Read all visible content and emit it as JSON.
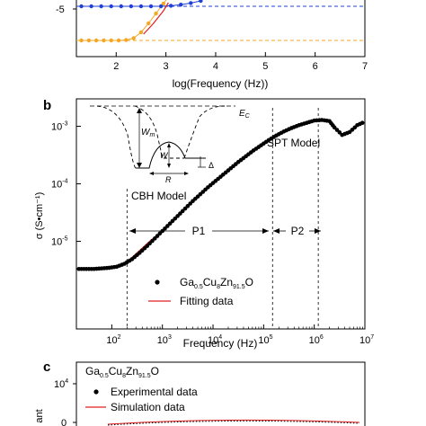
{
  "panel_a": {
    "xlabel": "log(Frequency (Hz))",
    "ytick_label": "-5"
  },
  "panel_b": {
    "label": "b",
    "xlabel": "Frequency (Hz)",
    "ylabel": "σ (S•cm⁻¹)",
    "cbh_label": "CBH Model",
    "spt_label": "SPT Model",
    "region_p1": "P1",
    "region_p2": "P2",
    "inset": {
      "ec": "E",
      "ec_sub": "C",
      "wm": "W",
      "wm_sub": "m",
      "w": "W",
      "r": "R",
      "delta": "Δ"
    },
    "legend": {
      "sample_main": "Ga",
      "sample_sub1": "0.5",
      "sample_cu": "Cu",
      "sample_sub2": "8",
      "sample_zn": "Zn",
      "sample_sub3": "91.5",
      "sample_o": "O",
      "fit": "Fitting data"
    }
  },
  "panel_c": {
    "label": "c",
    "sample_main": "Ga",
    "sample_sub1": "0.5",
    "sample_cu": "Cu",
    "sample_sub2": "8",
    "sample_zn": "Zn",
    "sample_sub3": "91.5",
    "sample_o": "O",
    "legend_exp": "Experimental data",
    "legend_sim": "Simulation data",
    "ytick_base": "10",
    "ytick_exp": "4",
    "ytick_zero": "0",
    "ylabel_partial": "ant"
  },
  "chart_data": [
    {
      "type": "scatter",
      "panel": "a",
      "xlabel": "log(Frequency (Hz))",
      "xlim": [
        1.2,
        7
      ],
      "x_ticks": [
        "2",
        "3",
        "4",
        "5",
        "6",
        "7"
      ],
      "y_ticks": [
        "-5"
      ],
      "hlines": [
        {
          "color": "#1f3fd6",
          "style": "dashed"
        },
        {
          "color": "#f5a623",
          "style": "dashed"
        }
      ],
      "series": [
        {
          "color": "#f5a623",
          "x": [
            1.3,
            1.45,
            1.6,
            1.75,
            1.9,
            2.05,
            2.2,
            2.35,
            2.5,
            2.65,
            2.8,
            2.95,
            3.05
          ],
          "level": [
            0,
            0,
            0,
            0,
            0,
            0,
            0.01,
            0.05,
            0.18,
            0.38,
            0.6,
            0.82,
            0.97
          ]
        },
        {
          "color": "#1f3fd6",
          "x": [
            1.3,
            1.5,
            1.7,
            1.9,
            2.1,
            2.3,
            2.5,
            2.7,
            2.9,
            3.1,
            3.3,
            3.5,
            3.7
          ],
          "level": [
            1,
            1,
            1,
            1,
            1,
            1,
            1,
            1,
            1,
            1.01,
            1.03,
            1.06,
            1.1
          ]
        }
      ]
    },
    {
      "type": "scatter",
      "panel": "b",
      "xlabel": "Frequency (Hz)",
      "ylabel": "σ (S•cm⁻¹)",
      "xscale": "log",
      "yscale": "log",
      "xlim": [
        20,
        10000000
      ],
      "ylim": [
        3e-07,
        0.003
      ],
      "x_ticks": [
        {
          "base": "10",
          "exp": "2",
          "v": 100
        },
        {
          "base": "10",
          "exp": "3",
          "v": 1000
        },
        {
          "base": "10",
          "exp": "4",
          "v": 10000
        },
        {
          "base": "10",
          "exp": "5",
          "v": 100000
        },
        {
          "base": "10",
          "exp": "6",
          "v": 1000000
        },
        {
          "base": "10",
          "exp": "7",
          "v": 10000000
        }
      ],
      "y_ticks": [
        {
          "base": "10",
          "exp": "-5",
          "v": 1e-05
        },
        {
          "base": "10",
          "exp": "-4",
          "v": 0.0001
        },
        {
          "base": "10",
          "exp": "-3",
          "v": 0.001
        }
      ],
      "regions": [
        {
          "label": "P1",
          "from": 200,
          "to": 150000
        },
        {
          "label": "P2",
          "from": 150000,
          "to": 1200000
        }
      ],
      "series": [
        {
          "name": "Ga0.5Cu8Zn91.5O",
          "style": "points",
          "color": "#000000",
          "log_x": [
            1.35,
            1.5,
            1.65,
            1.8,
            1.95,
            2.1,
            2.25,
            2.4,
            2.55,
            2.7,
            2.85,
            3.0,
            3.15,
            3.3,
            3.45,
            3.6,
            3.75,
            3.9,
            4.05,
            4.2,
            4.35,
            4.5,
            4.65,
            4.8,
            4.95,
            5.1,
            5.25,
            5.4,
            5.55,
            5.7,
            5.85,
            6.0,
            6.15,
            6.3,
            6.4,
            6.55,
            6.7,
            6.85,
            7.0
          ],
          "log_y": [
            -5.48,
            -5.48,
            -5.48,
            -5.47,
            -5.46,
            -5.44,
            -5.39,
            -5.31,
            -5.2,
            -5.08,
            -4.95,
            -4.82,
            -4.69,
            -4.56,
            -4.43,
            -4.3,
            -4.18,
            -4.06,
            -3.95,
            -3.84,
            -3.73,
            -3.62,
            -3.52,
            -3.42,
            -3.33,
            -3.24,
            -3.16,
            -3.09,
            -3.03,
            -2.98,
            -2.94,
            -2.9,
            -2.89,
            -2.91,
            -3.02,
            -3.15,
            -3.1,
            -2.98,
            -2.92
          ]
        },
        {
          "name": "Fitting data",
          "style": "line",
          "color": "#e02020",
          "log_x": [
            2.3,
            2.5,
            2.75,
            3.0,
            3.25,
            3.5,
            3.75,
            4.0,
            4.25,
            4.5,
            4.75,
            5.0,
            5.25,
            5.5,
            5.75,
            6.0
          ],
          "log_y": [
            -5.36,
            -5.2,
            -5.0,
            -4.82,
            -4.6,
            -4.38,
            -4.18,
            -3.99,
            -3.8,
            -3.62,
            -3.45,
            -3.3,
            -3.16,
            -3.05,
            -2.97,
            -2.91
          ]
        }
      ]
    },
    {
      "type": "scatter",
      "panel": "c",
      "series": [
        {
          "name": "Experimental data",
          "style": "points",
          "color": "#000000"
        },
        {
          "name": "Simulation data",
          "style": "line",
          "color": "#e02020"
        }
      ]
    }
  ]
}
